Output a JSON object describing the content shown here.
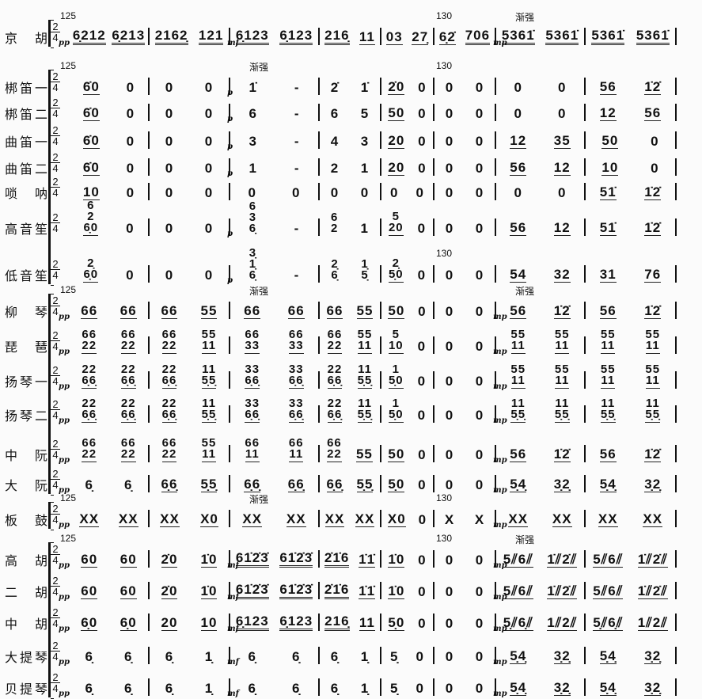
{
  "score": {
    "rows": [
      {
        "name": "京　胡",
        "dyn": [
          "pp",
          "",
          "mf",
          "",
          "",
          "",
          "mp",
          ""
        ],
        "marks": [
          "125",
          "",
          "",
          "",
          "",
          "130",
          "渐强",
          ""
        ],
        "measures": [
          [
            "6̣212",
            "6̣213"
          ],
          [
            "2162̣",
            "121"
          ],
          [
            "6̣123",
            "6̣123"
          ],
          [
            "216̣",
            "11"
          ],
          [
            "03",
            "27̣"
          ],
          [
            "6̣2̇",
            "706"
          ],
          [
            "5361̇",
            "5361̇"
          ],
          [
            "5361̇",
            "5361̇"
          ]
        ]
      },
      {
        "name": "梆笛一",
        "dyn": [
          "",
          "",
          "p",
          "",
          "",
          "",
          "",
          ""
        ],
        "marks": [
          "125",
          "",
          "渐强",
          "",
          "",
          "130",
          "",
          ""
        ],
        "measures": [
          [
            "6̇0",
            "0"
          ],
          [
            "0",
            "0"
          ],
          [
            "1̇",
            "-"
          ],
          [
            "2̇",
            "1̇"
          ],
          [
            "2̇0",
            "0"
          ],
          [
            "0",
            "0"
          ],
          [
            "0",
            "0"
          ],
          [
            "56",
            "1̇2̇"
          ]
        ]
      },
      {
        "name": "梆笛二",
        "dyn": [
          "",
          "",
          "p",
          "",
          "",
          "",
          "",
          ""
        ],
        "marks": [
          "",
          "",
          "",
          "",
          "",
          "",
          "",
          ""
        ],
        "measures": [
          [
            "6̇0",
            "0"
          ],
          [
            "0",
            "0"
          ],
          [
            "6",
            "-"
          ],
          [
            "6",
            "5"
          ],
          [
            "50",
            "0"
          ],
          [
            "0",
            "0"
          ],
          [
            "0",
            "0"
          ],
          [
            "12",
            "56"
          ]
        ]
      },
      {
        "name": "曲笛一",
        "dyn": [
          "",
          "",
          "p",
          "",
          "",
          "",
          "",
          ""
        ],
        "marks": [
          "",
          "",
          "",
          "",
          "",
          "",
          "",
          ""
        ],
        "measures": [
          [
            "6̇0",
            "0"
          ],
          [
            "0",
            "0"
          ],
          [
            "3",
            "-"
          ],
          [
            "4",
            "3"
          ],
          [
            "20",
            "0"
          ],
          [
            "0",
            "0"
          ],
          [
            "12",
            "35"
          ],
          [
            "50",
            "0"
          ]
        ]
      },
      {
        "name": "曲笛二",
        "dyn": [
          "",
          "",
          "p",
          "",
          "",
          "",
          "",
          ""
        ],
        "marks": [
          "",
          "",
          "",
          "",
          "",
          "",
          "",
          ""
        ],
        "measures": [
          [
            "6̇0",
            "0"
          ],
          [
            "0",
            "0"
          ],
          [
            "1",
            "-"
          ],
          [
            "2",
            "1"
          ],
          [
            "20",
            "0"
          ],
          [
            "0",
            "0"
          ],
          [
            "56",
            "12"
          ],
          [
            "10",
            "0"
          ]
        ]
      },
      {
        "name": "唢　呐",
        "dyn": [
          "",
          "",
          "",
          "",
          "",
          "",
          "",
          ""
        ],
        "marks": [
          "",
          "",
          "",
          "",
          "",
          "",
          "",
          ""
        ],
        "measures": [
          [
            "10",
            "0"
          ],
          [
            "0",
            "0"
          ],
          [
            "0",
            "0"
          ],
          [
            "0",
            "0"
          ],
          [
            "0",
            "0"
          ],
          [
            "0",
            "0"
          ],
          [
            "0",
            "0"
          ],
          [
            "51̇",
            "1̇2̇"
          ]
        ]
      },
      {
        "name": "高音笙",
        "dyn": [
          "",
          "",
          "p",
          "",
          "",
          "",
          "",
          ""
        ],
        "marks": [
          "",
          "",
          "",
          "",
          "",
          "",
          "",
          ""
        ],
        "measures": [
          [
            "6/2/6̣0",
            "0"
          ],
          [
            "0",
            "0"
          ],
          [
            "6/3/6̣",
            "-"
          ],
          [
            "6/2",
            "1"
          ],
          [
            "5/20",
            "0"
          ],
          [
            "0",
            "0"
          ],
          [
            "56",
            "12"
          ],
          [
            "51̇",
            "1̇2̇"
          ]
        ]
      },
      {
        "name": "低音笙",
        "dyn": [
          "",
          "",
          "p",
          "",
          "",
          "",
          "",
          ""
        ],
        "marks": [
          "",
          "",
          "",
          "",
          "",
          "130",
          "",
          ""
        ],
        "measures": [
          [
            "2̣/6̣0",
            "0"
          ],
          [
            "0",
            "0"
          ],
          [
            "3̣/1̣/6̣",
            "-"
          ],
          [
            "2̣/6̣",
            "1̣/5̣"
          ],
          [
            "2̣/5̣0",
            "0"
          ],
          [
            "0",
            "0"
          ],
          [
            "54",
            "32"
          ],
          [
            "31",
            "76"
          ]
        ]
      },
      {
        "name": "柳　琴",
        "dyn": [
          "pp",
          "",
          "",
          "",
          "",
          "",
          "mp",
          ""
        ],
        "marks": [
          "125",
          "",
          "渐强",
          "",
          "",
          "",
          "渐强",
          ""
        ],
        "measures": [
          [
            "66",
            "66"
          ],
          [
            "66",
            "55"
          ],
          [
            "66",
            "66"
          ],
          [
            "66",
            "55"
          ],
          [
            "50",
            "0"
          ],
          [
            "0",
            "0"
          ],
          [
            "56",
            "1̇2̇"
          ],
          [
            "56",
            "1̇2̇"
          ]
        ]
      },
      {
        "name": "琵　琶",
        "dyn": [
          "pp",
          "",
          "",
          "",
          "",
          "",
          "mp",
          ""
        ],
        "marks": [
          "",
          "",
          "",
          "",
          "",
          "",
          "",
          ""
        ],
        "measures": [
          [
            "66/22",
            "66/22"
          ],
          [
            "66/22",
            "55/11"
          ],
          [
            "66/33",
            "66/33"
          ],
          [
            "66/22",
            "55/11"
          ],
          [
            "5/10",
            "0"
          ],
          [
            "0",
            "0"
          ],
          [
            "55/11",
            "55/11"
          ],
          [
            "55/11",
            "55/11"
          ]
        ]
      },
      {
        "name": "扬琴一",
        "dyn": [
          "pp",
          "",
          "",
          "",
          "",
          "",
          "mp",
          ""
        ],
        "marks": [
          "",
          "",
          "",
          "",
          "",
          "",
          "",
          ""
        ],
        "measures": [
          [
            "22/6̣6̣",
            "22/6̣6̣"
          ],
          [
            "22/6̣6̣",
            "11/5̣5̣"
          ],
          [
            "33/6̣6̣",
            "33/6̣6̣"
          ],
          [
            "22/6̣6̣",
            "11/5̣5̣"
          ],
          [
            "1/5̣0",
            "0"
          ],
          [
            "0",
            "0"
          ],
          [
            "55/11",
            "55/11"
          ],
          [
            "55/11",
            "55/11"
          ]
        ]
      },
      {
        "name": "扬琴二",
        "dyn": [
          "pp",
          "",
          "",
          "",
          "",
          "",
          "mp",
          ""
        ],
        "marks": [
          "",
          "",
          "",
          "",
          "",
          "",
          "",
          ""
        ],
        "measures": [
          [
            "22/6̣6̣",
            "22/6̣6̣"
          ],
          [
            "22/6̣6̣",
            "11/5̣5̣"
          ],
          [
            "33/6̣6̣",
            "33/6̣6̣"
          ],
          [
            "22/6̣6̣",
            "11/5̣5̣"
          ],
          [
            "1/5̣0",
            "0"
          ],
          [
            "0",
            "0"
          ],
          [
            "11/5̣5̣",
            "11/5̣5̣"
          ],
          [
            "11/5̣5̣",
            "11/5̣5̣"
          ]
        ]
      },
      {
        "name": "中　阮",
        "dyn": [
          "pp",
          "",
          "",
          "",
          "",
          "",
          "mp",
          ""
        ],
        "marks": [
          "",
          "",
          "",
          "",
          "",
          "",
          "",
          ""
        ],
        "measures": [
          [
            "66/22",
            "66/22"
          ],
          [
            "66/22",
            "55/11"
          ],
          [
            "66/11",
            "66/11"
          ],
          [
            "66/22",
            "55"
          ],
          [
            "50",
            "0"
          ],
          [
            "0",
            "0"
          ],
          [
            "56",
            "1̇2̇"
          ],
          [
            "56",
            "1̇2̇"
          ]
        ]
      },
      {
        "name": "大　阮",
        "dyn": [
          "pp",
          "",
          "",
          "",
          "",
          "",
          "mp",
          ""
        ],
        "marks": [
          "",
          "",
          "",
          "",
          "",
          "",
          "",
          ""
        ],
        "measures": [
          [
            "6̣",
            "6̣"
          ],
          [
            "6̣6̣",
            "5̣5̣"
          ],
          [
            "6̣6̣",
            "6̣6̣"
          ],
          [
            "6̣6̣",
            "5̣5̣"
          ],
          [
            "5̣0",
            "0"
          ],
          [
            "0",
            "0"
          ],
          [
            "5̣4̣",
            "3̣2̣"
          ],
          [
            "5̣4̣",
            "3̣2̣"
          ]
        ]
      },
      {
        "name": "板　鼓",
        "dyn": [
          "pp",
          "",
          "",
          "",
          "",
          "",
          "mp",
          ""
        ],
        "marks": [
          "125",
          "",
          "渐强",
          "",
          "",
          "130",
          "",
          ""
        ],
        "measures": [
          [
            "XX",
            "XX"
          ],
          [
            "XX",
            "X0"
          ],
          [
            "XX",
            "XX"
          ],
          [
            "XX",
            "XX"
          ],
          [
            "X0",
            "0"
          ],
          [
            "X",
            "X"
          ],
          [
            "XX",
            "XX"
          ],
          [
            "XX",
            "XX"
          ]
        ]
      },
      {
        "name": "高　胡",
        "dyn": [
          "pp",
          "",
          "mf",
          "",
          "",
          "",
          "mp",
          ""
        ],
        "marks": [
          "125",
          "",
          "",
          "",
          "",
          "130",
          "渐强",
          ""
        ],
        "measures": [
          [
            "60",
            "60"
          ],
          [
            "2̇0",
            "1̇0"
          ],
          [
            "61̇2̇3̇",
            "61̇2̇3̇"
          ],
          [
            "2̇1̇6",
            "1̇1̇"
          ],
          [
            "1̇0",
            "0"
          ],
          [
            "0",
            "0"
          ],
          [
            "5⫽6⫽",
            "1̇⫽2̇⫽"
          ],
          [
            "5⫽6⫽",
            "1̇⫽2̇⫽"
          ]
        ]
      },
      {
        "name": "二　胡",
        "dyn": [
          "pp",
          "",
          "mf",
          "",
          "",
          "",
          "mp",
          ""
        ],
        "marks": [
          "",
          "",
          "",
          "",
          "",
          "",
          "",
          ""
        ],
        "measures": [
          [
            "60",
            "60"
          ],
          [
            "2̇0",
            "1̇0"
          ],
          [
            "61̇2̇3̇",
            "61̇2̇3̇"
          ],
          [
            "2̇1̇6",
            "1̇1̇"
          ],
          [
            "1̇0",
            "0"
          ],
          [
            "0",
            "0"
          ],
          [
            "5⫽6⫽",
            "1̇⫽2̇⫽"
          ],
          [
            "5⫽6⫽",
            "1̇⫽2̇⫽"
          ]
        ]
      },
      {
        "name": "中　胡",
        "dyn": [
          "pp",
          "",
          "mf",
          "",
          "",
          "",
          "mp",
          ""
        ],
        "marks": [
          "",
          "",
          "",
          "",
          "",
          "",
          "",
          ""
        ],
        "measures": [
          [
            "6̣0",
            "6̣0"
          ],
          [
            "20",
            "10"
          ],
          [
            "6̣123",
            "6̣123"
          ],
          [
            "216̣",
            "11"
          ],
          [
            "5̣0",
            "0"
          ],
          [
            "0",
            "0"
          ],
          [
            "5̣⫽6̣⫽",
            "1⫽2⫽"
          ],
          [
            "5̣⫽6̣⫽",
            "1⫽2⫽"
          ]
        ]
      },
      {
        "name": "大提琴",
        "dyn": [
          "pp",
          "",
          "mf",
          "",
          "",
          "",
          "mp",
          ""
        ],
        "marks": [
          "",
          "",
          "",
          "",
          "",
          "",
          "",
          ""
        ],
        "measures": [
          [
            "6̣",
            "6̣"
          ],
          [
            "6̣",
            "1̣"
          ],
          [
            "6̣",
            "6̣"
          ],
          [
            "6̣",
            "1̣"
          ],
          [
            "5̣",
            "0"
          ],
          [
            "0",
            "0"
          ],
          [
            "5̣4̣",
            "3̣2̣"
          ],
          [
            "5̣4̣",
            "3̣2̣"
          ]
        ]
      },
      {
        "name": "贝提琴",
        "dyn": [
          "pp",
          "",
          "mf",
          "",
          "",
          "",
          "mp",
          ""
        ],
        "marks": [
          "",
          "",
          "",
          "",
          "",
          "",
          "",
          ""
        ],
        "measures": [
          [
            "6̣",
            "6̣"
          ],
          [
            "6̣",
            "1̣"
          ],
          [
            "6̣",
            "6̣"
          ],
          [
            "6̣",
            "1̣"
          ],
          [
            "5̣",
            "0"
          ],
          [
            "0",
            "0"
          ],
          [
            "5̣4̣",
            "3̣2̣"
          ],
          [
            "5̣4̣",
            "3̣2̣"
          ]
        ]
      }
    ],
    "time_signature": {
      "top": "2",
      "bottom": "4"
    }
  }
}
